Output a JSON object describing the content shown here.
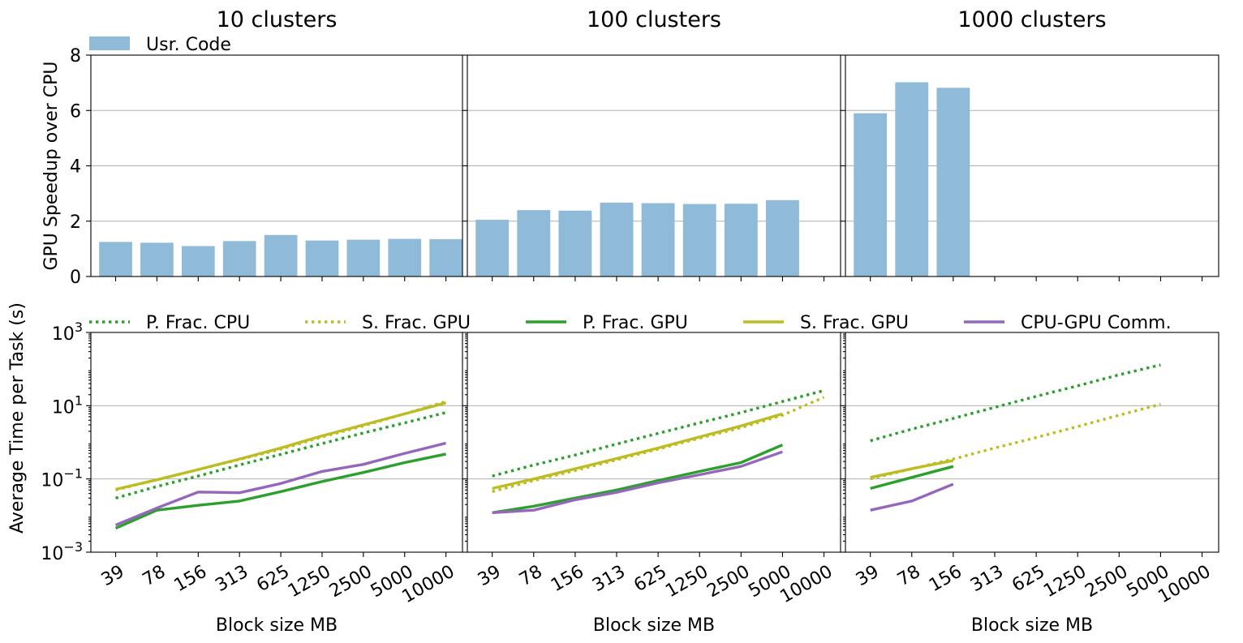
{
  "chart_data": [
    {
      "type": "bar",
      "title": "",
      "ylabel": "GPU Speedup over CPU",
      "ylim": [
        0,
        8
      ],
      "yticks": [
        "0",
        "2",
        "4",
        "6",
        "8"
      ],
      "grid": true,
      "legend_placement": "top-left",
      "categories": [
        "39",
        "78",
        "156",
        "313",
        "625",
        "1250",
        "2500",
        "5000",
        "10000"
      ],
      "panels": [
        {
          "title": "10 clusters",
          "series": [
            {
              "name": "Usr. Code",
              "color": "#8fbbd9",
              "values": [
                1.25,
                1.22,
                1.1,
                1.28,
                1.5,
                1.3,
                1.33,
                1.36,
                1.35
              ]
            }
          ]
        },
        {
          "title": "100 clusters",
          "series": [
            {
              "name": "Usr. Code",
              "color": "#8fbbd9",
              "values": [
                2.05,
                2.4,
                2.38,
                2.67,
                2.65,
                2.62,
                2.63,
                2.76,
                null
              ]
            }
          ]
        },
        {
          "title": "1000 clusters",
          "series": [
            {
              "name": "Usr. Code",
              "color": "#8fbbd9",
              "values": [
                5.9,
                7.02,
                6.82,
                null,
                null,
                null,
                null,
                null,
                null
              ]
            }
          ]
        }
      ]
    },
    {
      "type": "line",
      "title": "",
      "xlabel": "Block size MB",
      "ylabel": "Average Time per Task (s)",
      "yscale": "log",
      "ylim": [
        0.001,
        1000
      ],
      "yticks": [
        {
          "value": 0.001,
          "base": "10",
          "exp": "−3"
        },
        {
          "value": 0.1,
          "base": "10",
          "exp": "−1"
        },
        {
          "value": 10,
          "base": "10",
          "exp": "1"
        },
        {
          "value": 1000,
          "base": "10",
          "exp": "3"
        }
      ],
      "grid": true,
      "legend_placement": "top",
      "categories": [
        "39",
        "78",
        "156",
        "313",
        "625",
        "1250",
        "2500",
        "5000",
        "10000"
      ],
      "legend": [
        {
          "name": "P. Frac. CPU",
          "color": "#2ca02c",
          "dash": "dotted"
        },
        {
          "name": "S. Frac. GPU",
          "color": "#bcbd22",
          "dash": "dotted"
        },
        {
          "name": "P. Frac. GPU",
          "color": "#2ca02c",
          "dash": "solid"
        },
        {
          "name": "S. Frac. GPU",
          "color": "#bcbd22",
          "dash": "solid"
        },
        {
          "name": "CPU-GPU Comm.",
          "color": "#9467bd",
          "dash": "solid"
        }
      ],
      "panels": [
        {
          "title": "10 clusters",
          "series": [
            {
              "name": "P. Frac. CPU",
              "values": [
                0.03,
                0.062,
                0.12,
                0.24,
                0.47,
                0.92,
                1.8,
                3.4,
                6.5
              ]
            },
            {
              "name": "S. Frac. GPU",
              "values": [
                0.05,
                0.095,
                0.18,
                0.34,
                0.65,
                1.4,
                2.8,
                6.0,
                13
              ]
            },
            {
              "name": "P. Frac. GPU",
              "values": [
                0.0045,
                0.014,
                0.019,
                0.025,
                0.045,
                0.085,
                0.15,
                0.28,
                0.48
              ]
            },
            {
              "name": "S. Frac. GPU",
              "values": [
                0.052,
                0.095,
                0.18,
                0.35,
                0.7,
                1.5,
                3.0,
                6.0,
                12
              ]
            },
            {
              "name": "CPU-GPU Comm.",
              "values": [
                0.0055,
                0.016,
                0.044,
                0.042,
                0.075,
                0.16,
                0.25,
                0.5,
                0.95
              ]
            }
          ]
        },
        {
          "title": "100 clusters",
          "series": [
            {
              "name": "P. Frac. CPU",
              "values": [
                0.12,
                0.24,
                0.45,
                0.9,
                1.75,
                3.4,
                6.5,
                13,
                26
              ]
            },
            {
              "name": "S. Frac. GPU",
              "values": [
                0.045,
                0.09,
                0.17,
                0.33,
                0.65,
                1.3,
                2.5,
                5.5,
                17
              ]
            },
            {
              "name": "P. Frac. GPU",
              "values": [
                0.012,
                0.018,
                0.03,
                0.05,
                0.09,
                0.16,
                0.28,
                0.85,
                null
              ]
            },
            {
              "name": "S. Frac. GPU",
              "values": [
                0.055,
                0.1,
                0.19,
                0.36,
                0.7,
                1.4,
                2.8,
                6.0,
                null
              ]
            },
            {
              "name": "CPU-GPU Comm.",
              "values": [
                0.012,
                0.014,
                0.027,
                0.043,
                0.078,
                0.13,
                0.22,
                0.55,
                null
              ]
            }
          ]
        },
        {
          "title": "1000 clusters",
          "series": [
            {
              "name": "P. Frac. CPU",
              "values": [
                1.1,
                2.3,
                4.5,
                9,
                18,
                35,
                70,
                130,
                null
              ]
            },
            {
              "name": "S. Frac. GPU",
              "values": [
                0.1,
                0.19,
                0.35,
                0.7,
                1.35,
                2.7,
                5.5,
                11,
                null
              ]
            },
            {
              "name": "P. Frac. GPU",
              "values": [
                0.055,
                0.11,
                0.22,
                null,
                null,
                null,
                null,
                null,
                null
              ]
            },
            {
              "name": "S. Frac. GPU",
              "values": [
                0.11,
                0.19,
                0.32,
                null,
                null,
                null,
                null,
                null,
                null
              ]
            },
            {
              "name": "CPU-GPU Comm.",
              "values": [
                0.014,
                0.025,
                0.072,
                null,
                null,
                null,
                null,
                null,
                null
              ]
            }
          ]
        }
      ]
    }
  ]
}
